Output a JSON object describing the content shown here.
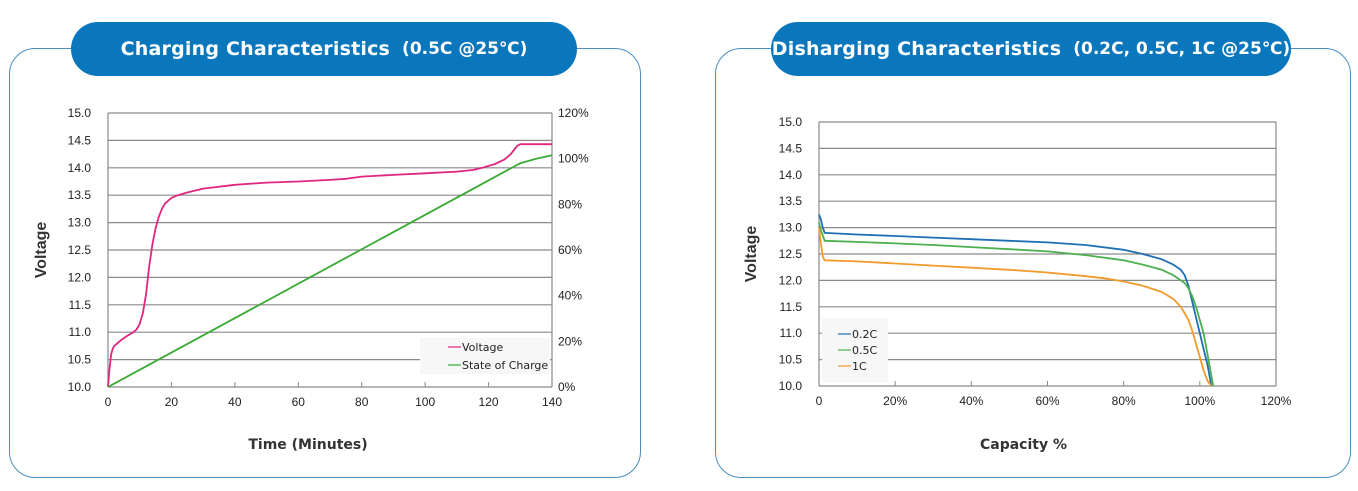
{
  "panels": {
    "charging": {
      "title": "Charging Characteristics",
      "subtitle": "(0.5C @25℃)"
    },
    "discharging": {
      "title": "Disharging Characteristics",
      "subtitle": "(0.2C, 0.5C, 1C @25℃)"
    }
  },
  "colors": {
    "title_pill": "#0a76bc",
    "panel_border": "#4a8fc0",
    "voltage": "#e0267f",
    "state_of_charge": "#3aaa35",
    "c02": "#1f6fb5",
    "c05": "#4caf50",
    "c1": "#f39a2c"
  },
  "chart_data": [
    {
      "type": "line",
      "title": "Charging Characteristics (0.5C @25℃)",
      "xlabel": "Time (Minutes)",
      "ylabel": "Voltage",
      "y2label": "",
      "xlim": [
        0,
        140
      ],
      "ylim": [
        10.0,
        15.0
      ],
      "y2lim": [
        0,
        120
      ],
      "x_ticks": [
        "0",
        "20",
        "40",
        "60",
        "80",
        "100",
        "120",
        "140"
      ],
      "y_ticks": [
        "10.0",
        "10.5",
        "11.0",
        "11.5",
        "12.0",
        "12.5",
        "13.0",
        "13.5",
        "14.0",
        "14.5",
        "15.0"
      ],
      "y2_ticks": [
        "0%",
        "20%",
        "40%",
        "60%",
        "80%",
        "100%",
        "120%"
      ],
      "grid": "horizontal",
      "legend_position": "bottom-right",
      "series": [
        {
          "name": "Voltage",
          "axis": "left",
          "x": [
            0,
            0.5,
            1,
            1.5,
            2,
            4,
            6,
            8,
            9,
            10,
            11,
            12,
            13,
            14,
            15,
            16,
            17,
            18,
            20,
            22,
            25,
            30,
            40,
            50,
            60,
            70,
            75,
            80,
            90,
            100,
            110,
            115,
            118,
            122,
            125,
            127,
            129,
            130,
            135,
            140
          ],
          "y": [
            10.0,
            10.35,
            10.6,
            10.7,
            10.75,
            10.85,
            10.93,
            11.0,
            11.05,
            11.15,
            11.35,
            11.7,
            12.2,
            12.6,
            12.9,
            13.1,
            13.25,
            13.35,
            13.45,
            13.5,
            13.55,
            13.62,
            13.69,
            13.73,
            13.75,
            13.78,
            13.8,
            13.84,
            13.87,
            13.9,
            13.93,
            13.96,
            14.0,
            14.07,
            14.15,
            14.25,
            14.4,
            14.43,
            14.43,
            14.43
          ]
        },
        {
          "name": "State of Charge",
          "axis": "right",
          "x": [
            0,
            130,
            135,
            140
          ],
          "y": [
            0,
            98,
            100,
            101.5
          ]
        }
      ]
    },
    {
      "type": "line",
      "title": "Disharging Characteristics (0.2C, 0.5C, 1C @25℃)",
      "xlabel": "Capacity %",
      "ylabel": "Voltage",
      "xlim": [
        0,
        120
      ],
      "ylim": [
        10.0,
        15.0
      ],
      "x_ticks": [
        "0",
        "20%",
        "40%",
        "60%",
        "80%",
        "100%",
        "120%"
      ],
      "y_ticks": [
        "10.0",
        "10.5",
        "11.0",
        "11.5",
        "12.0",
        "12.5",
        "13.0",
        "13.5",
        "14.0",
        "14.5",
        "15.0"
      ],
      "grid": "horizontal",
      "legend_position": "bottom-left",
      "series": [
        {
          "name": "0.2C",
          "x": [
            0,
            0.5,
            1,
            1.5,
            10,
            20,
            30,
            40,
            50,
            60,
            70,
            80,
            85,
            90,
            93,
            95,
            96,
            97,
            98,
            99,
            100,
            101,
            102,
            102.5,
            103
          ],
          "y": [
            13.25,
            13.15,
            13.0,
            12.9,
            12.87,
            12.84,
            12.81,
            12.78,
            12.75,
            12.72,
            12.67,
            12.58,
            12.5,
            12.4,
            12.3,
            12.2,
            12.1,
            11.9,
            11.6,
            11.3,
            11.0,
            10.7,
            10.4,
            10.2,
            10.0
          ]
        },
        {
          "name": "0.5C",
          "x": [
            0,
            0.5,
            1,
            1.5,
            10,
            20,
            30,
            40,
            50,
            60,
            70,
            80,
            85,
            90,
            93,
            95,
            96,
            97,
            98,
            99,
            100,
            101,
            102,
            103,
            103.5
          ],
          "y": [
            13.1,
            12.95,
            12.85,
            12.75,
            12.73,
            12.7,
            12.67,
            12.63,
            12.59,
            12.55,
            12.48,
            12.38,
            12.3,
            12.2,
            12.1,
            12.0,
            11.95,
            11.85,
            11.7,
            11.5,
            11.25,
            11.0,
            10.6,
            10.2,
            10.0
          ]
        },
        {
          "name": "1C",
          "x": [
            0,
            0.5,
            1,
            1.5,
            10,
            20,
            30,
            40,
            50,
            60,
            70,
            75,
            80,
            85,
            90,
            93,
            95,
            96,
            97,
            98,
            99,
            100,
            101,
            102,
            103
          ],
          "y": [
            13.0,
            12.7,
            12.45,
            12.38,
            12.36,
            12.32,
            12.28,
            12.24,
            12.2,
            12.15,
            12.08,
            12.04,
            11.98,
            11.9,
            11.78,
            11.65,
            11.5,
            11.38,
            11.25,
            11.05,
            10.8,
            10.55,
            10.3,
            10.1,
            10.0
          ]
        }
      ]
    }
  ]
}
